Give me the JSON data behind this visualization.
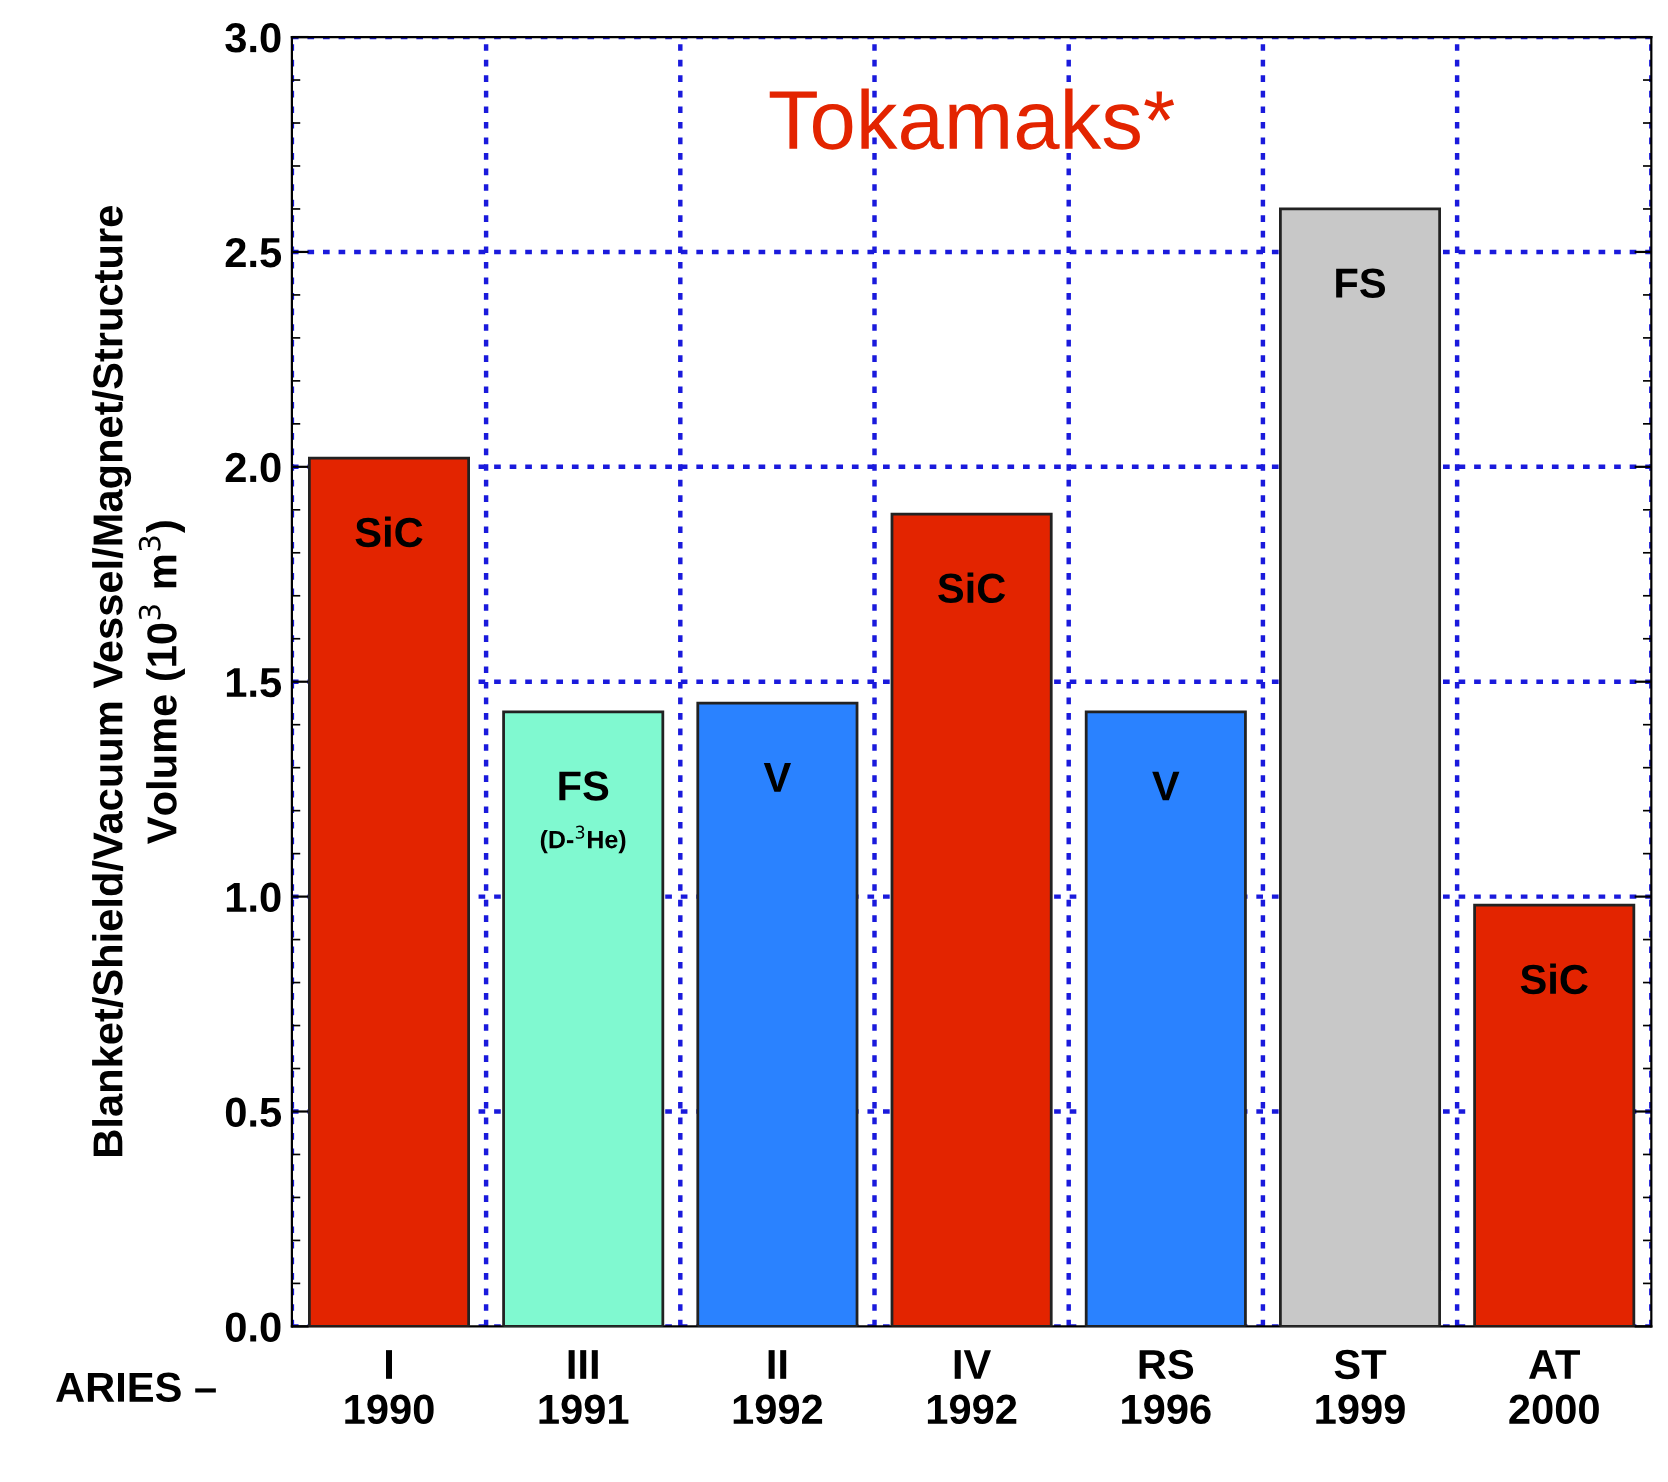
{
  "chart_data": {
    "type": "bar",
    "title": "Tokamaks*",
    "ylabel": "Blanket/Shield/Vacuum Vessel/Magnet/Structure\nVolume (10$^{3}$ m$^{3}$)",
    "xlabel": "ARIES –",
    "categories": [
      "I\n1990",
      "III\n1991",
      "II\n1992",
      "IV\n1992",
      "RS\n1996",
      "ST\n1999",
      "AT\n2000"
    ],
    "values": [
      2.02,
      1.43,
      1.45,
      1.89,
      1.43,
      2.6,
      0.98
    ],
    "colors": [
      "#e32400",
      "#80f9d0",
      "#2a82ff",
      "#e32400",
      "#2a82ff",
      "#c8c8c8",
      "#e32400"
    ],
    "ylim": [
      0,
      3
    ],
    "yticks": [
      {
        "value": 0,
        "label": "0.0"
      },
      0.5,
      {
        "value": 1,
        "label": "1.0"
      },
      1.5,
      {
        "value": 2,
        "label": "2.0"
      },
      2.5,
      {
        "value": 3,
        "label": "3.0"
      }
    ],
    "grid": true,
    "annotations": [
      {
        "text": "SiC",
        "x": "I\n1990",
        "y": 2.02
      },
      {
        "text": "FS",
        "x": "III\n1991",
        "y": 1.43
      },
      "(D-$^{3}$He)",
      {
        "text": "V",
        "x": "II\n1992",
        "y": 1.45
      },
      {
        "text": "SiC",
        "x": "IV\n1992",
        "y": 1.89
      },
      {
        "text": "V",
        "x": "RS\n1996",
        "y": 1.43
      },
      {
        "text": "FS",
        "x": "ST\n1999",
        "y": 2.6
      },
      {
        "text": "SiC",
        "x": "AT\n2000",
        "y": 0.98
      }
    ]
  }
}
